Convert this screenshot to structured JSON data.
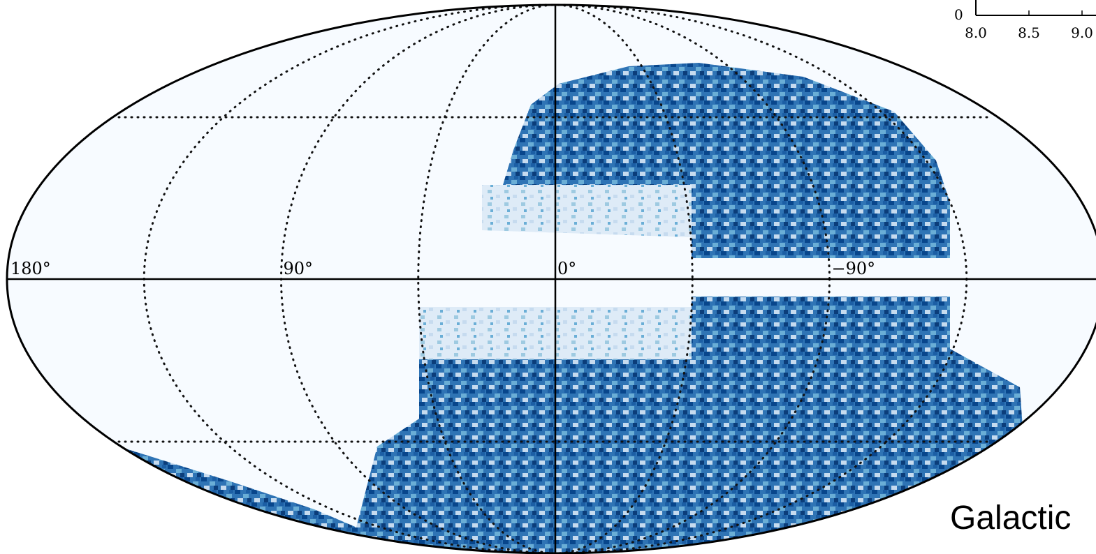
{
  "map": {
    "projection": "mollweide",
    "grid": true,
    "longitude_ticks": [
      {
        "value": 180,
        "label": "180°"
      },
      {
        "value": 90,
        "label": "90°"
      },
      {
        "value": 0,
        "label": "0°"
      },
      {
        "value": -90,
        "label": "−90°"
      }
    ],
    "frame_label": "Galactic"
  },
  "inset": {
    "yticks": [
      0
    ],
    "xticks": [
      {
        "value": 8,
        "label": "8.0"
      },
      {
        "value": 8.5,
        "label": "8.5"
      },
      {
        "value": 9,
        "label": "9.0"
      }
    ]
  }
}
